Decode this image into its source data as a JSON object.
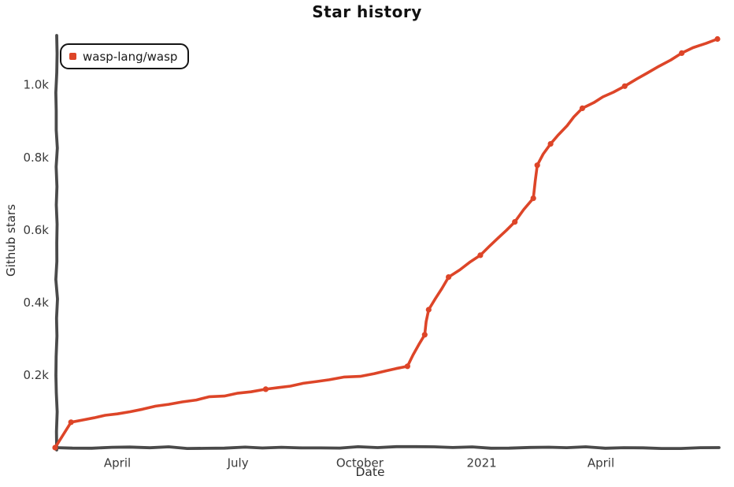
{
  "colors": {
    "line": "#dd4528",
    "axis": "#4a4a4a",
    "tick_text": "#3a3a3a",
    "background": "#ffffff"
  },
  "chart_data": {
    "type": "line",
    "title": "Star history",
    "xlabel": "Date",
    "ylabel": "Github stars",
    "grid": false,
    "legend_position": "upper-left",
    "x_domain": [
      "2020-02-14",
      "2021-06-28"
    ],
    "ylim": [
      0,
      1135
    ],
    "yticks": [
      {
        "value": 200,
        "label": "0.2k"
      },
      {
        "value": 400,
        "label": "0.4k"
      },
      {
        "value": 600,
        "label": "0.6k"
      },
      {
        "value": 800,
        "label": "0.8k"
      },
      {
        "value": 1000,
        "label": "1.0k"
      }
    ],
    "xticks": [
      {
        "date": "2020-04-01",
        "label": "April"
      },
      {
        "date": "2020-07-01",
        "label": "July"
      },
      {
        "date": "2020-10-01",
        "label": "October"
      },
      {
        "date": "2021-01-01",
        "label": "2021"
      },
      {
        "date": "2021-04-01",
        "label": "April"
      }
    ],
    "series": [
      {
        "name": "wasp-lang/wasp",
        "color": "#dd4528",
        "points": [
          {
            "date": "2020-02-14",
            "stars": 0
          },
          {
            "date": "2020-02-26",
            "stars": 70
          },
          {
            "date": "2020-04-01",
            "stars": 93,
            "interp": true
          },
          {
            "date": "2020-05-20",
            "stars": 126,
            "interp": true
          },
          {
            "date": "2020-07-01",
            "stars": 150,
            "interp": true
          },
          {
            "date": "2020-07-22",
            "stars": 161
          },
          {
            "date": "2020-09-08",
            "stars": 187,
            "interp": true
          },
          {
            "date": "2020-10-12",
            "stars": 204,
            "interp": true
          },
          {
            "date": "2020-11-06",
            "stars": 224
          },
          {
            "date": "2020-11-19",
            "stars": 311
          },
          {
            "date": "2020-11-22",
            "stars": 380
          },
          {
            "date": "2020-12-07",
            "stars": 470
          },
          {
            "date": "2020-12-31",
            "stars": 530
          },
          {
            "date": "2021-01-26",
            "stars": 622
          },
          {
            "date": "2021-02-09",
            "stars": 687
          },
          {
            "date": "2021-02-12",
            "stars": 778
          },
          {
            "date": "2021-02-22",
            "stars": 837
          },
          {
            "date": "2021-03-18",
            "stars": 935
          },
          {
            "date": "2021-04-19",
            "stars": 996
          },
          {
            "date": "2021-06-01",
            "stars": 1087
          },
          {
            "date": "2021-06-28",
            "stars": 1126
          }
        ]
      }
    ]
  }
}
